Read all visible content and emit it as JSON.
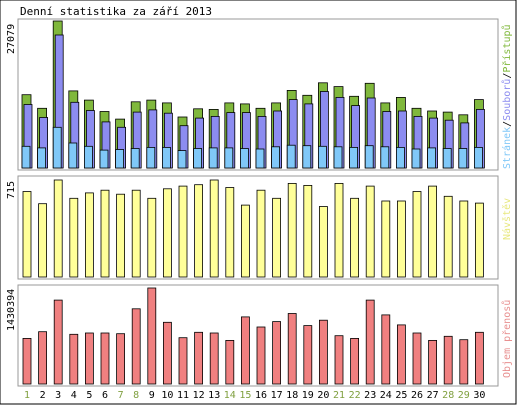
{
  "chart_data": {
    "type": "bar",
    "title": "Denní statistika za září 2013",
    "categories": [
      "1",
      "2",
      "3",
      "4",
      "5",
      "6",
      "7",
      "8",
      "9",
      "10",
      "11",
      "12",
      "13",
      "14",
      "15",
      "16",
      "17",
      "18",
      "19",
      "20",
      "21",
      "22",
      "23",
      "24",
      "25",
      "26",
      "27",
      "28",
      "29",
      "30"
    ],
    "weekend_days": [
      "1",
      "7",
      "8",
      "14",
      "15",
      "21",
      "22",
      "28",
      "29"
    ],
    "colors": {
      "hits": "#80b83c",
      "files": "#8c8cf0",
      "pages": "#80c8f8",
      "visits": "#ffff99",
      "traffic": "#f08080",
      "weekday_label": "#000000",
      "weekend_label": "#80a040",
      "frame": "#000000",
      "panel_border": "#999999"
    },
    "panels": [
      {
        "id": "top",
        "ymax_label": "27079",
        "ylim": [
          0,
          27079
        ],
        "legend": [
          {
            "label": "Stránek",
            "color": "#80c8f8"
          },
          {
            "label": "/",
            "color": "#000000"
          },
          {
            "label": "Souborů",
            "color": "#8c8cf0"
          },
          {
            "label": "/",
            "color": "#000000"
          },
          {
            "label": "Přístupů",
            "color": "#80b83c"
          }
        ],
        "series": [
          {
            "name": "Přístupů",
            "values": [
              13500,
              11000,
              27079,
              14200,
              12500,
              10400,
              9000,
              12200,
              12500,
              12000,
              9400,
              10900,
              10800,
              12000,
              11800,
              11000,
              12000,
              14300,
              13400,
              15700,
              15000,
              13200,
              15600,
              12000,
              13000,
              11000,
              10500,
              10300,
              9800,
              12600
            ]
          },
          {
            "name": "Souborů",
            "values": [
              11700,
              9300,
              24500,
              12100,
              10600,
              8500,
              7500,
              10300,
              10700,
              10100,
              7800,
              9200,
              9500,
              10200,
              10200,
              9500,
              10500,
              12600,
              11800,
              14100,
              13000,
              11500,
              12900,
              10400,
              10500,
              9500,
              9200,
              8800,
              8300,
              10800
            ]
          },
          {
            "name": "Stránek",
            "values": [
              4000,
              3700,
              7500,
              4600,
              4000,
              3300,
              3400,
              3600,
              3800,
              3800,
              3200,
              3600,
              3700,
              3700,
              3600,
              3500,
              3900,
              4200,
              4100,
              4000,
              3900,
              3800,
              4100,
              3900,
              3800,
              3500,
              3700,
              3600,
              3600,
              3800
            ]
          }
        ]
      },
      {
        "id": "middle",
        "ymax_label": "715",
        "ylim": [
          0,
          715
        ],
        "legend": [
          {
            "label": "Návštěv",
            "color": "#e8e880"
          }
        ],
        "series": [
          {
            "name": "Návštěv",
            "values": [
              630,
              540,
              715,
              580,
              620,
              640,
              610,
              640,
              580,
              650,
              670,
              680,
              715,
              660,
              530,
              640,
              580,
              690,
              675,
              520,
              690,
              580,
              670,
              560,
              560,
              630,
              670,
              595,
              560,
              545
            ]
          }
        ]
      },
      {
        "id": "bottom",
        "ymax_label": "1430394",
        "ylim": [
          0,
          1430394
        ],
        "legend": [
          {
            "label": "Objem přenosů",
            "color": "#e89090"
          }
        ],
        "series": [
          {
            "name": "Objem přenosů",
            "values": [
              680000,
              780000,
              1250000,
              740000,
              760000,
              760000,
              750000,
              1120000,
              1430394,
              920000,
              690000,
              770000,
              760000,
              650000,
              1000000,
              850000,
              930000,
              1050000,
              870000,
              950000,
              720000,
              680000,
              1250000,
              1030000,
              880000,
              760000,
              650000,
              710000,
              660000,
              770000
            ]
          }
        ]
      }
    ]
  }
}
